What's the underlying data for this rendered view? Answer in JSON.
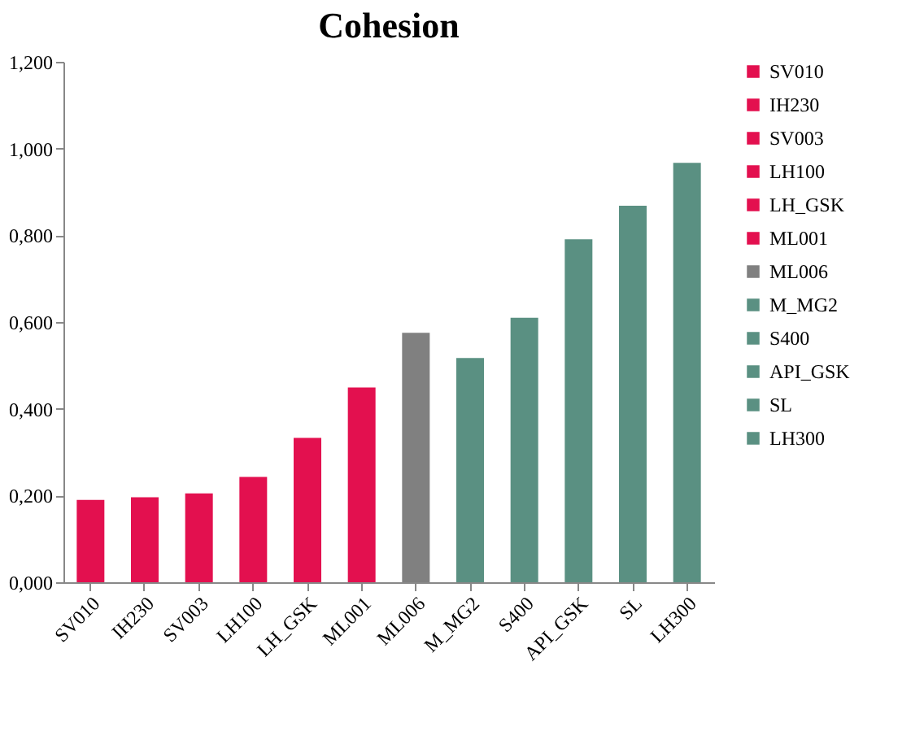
{
  "chart_data": {
    "type": "bar",
    "title": "Cohesion",
    "categories": [
      "SV010",
      "IH230",
      "SV003",
      "LH100",
      "LH_GSK",
      "ML001",
      "ML006",
      "M_MG2",
      "S400",
      "API_GSK",
      "SL",
      "LH300"
    ],
    "series": [
      {
        "name": "SV010",
        "color": "#e3104f",
        "values": [
          0.19,
          null,
          null,
          null,
          null,
          null,
          null,
          null,
          null,
          null,
          null,
          null
        ]
      },
      {
        "name": "IH230",
        "color": "#e3104f",
        "values": [
          null,
          0.196,
          null,
          null,
          null,
          null,
          null,
          null,
          null,
          null,
          null,
          null
        ]
      },
      {
        "name": "SV003",
        "color": "#e3104f",
        "values": [
          null,
          null,
          0.205,
          null,
          null,
          null,
          null,
          null,
          null,
          null,
          null,
          null
        ]
      },
      {
        "name": "LH100",
        "color": "#e3104f",
        "values": [
          null,
          null,
          null,
          0.243,
          null,
          null,
          null,
          null,
          null,
          null,
          null,
          null
        ]
      },
      {
        "name": "LH_GSK",
        "color": "#e3104f",
        "values": [
          null,
          null,
          null,
          null,
          0.333,
          null,
          null,
          null,
          null,
          null,
          null,
          null
        ]
      },
      {
        "name": "ML001",
        "color": "#e3104f",
        "values": [
          null,
          null,
          null,
          null,
          null,
          0.449,
          null,
          null,
          null,
          null,
          null,
          null
        ]
      },
      {
        "name": "ML006",
        "color": "#808080",
        "values": [
          null,
          null,
          null,
          null,
          null,
          null,
          0.575,
          null,
          null,
          null,
          null,
          null
        ]
      },
      {
        "name": "M_MG2",
        "color": "#5a9082",
        "values": [
          null,
          null,
          null,
          null,
          null,
          null,
          null,
          0.517,
          null,
          null,
          null,
          null
        ]
      },
      {
        "name": "S400",
        "color": "#5a9082",
        "values": [
          null,
          null,
          null,
          null,
          null,
          null,
          null,
          null,
          0.61,
          null,
          null,
          null
        ]
      },
      {
        "name": "API_GSK",
        "color": "#5a9082",
        "values": [
          null,
          null,
          null,
          null,
          null,
          null,
          null,
          null,
          null,
          0.791,
          null,
          null
        ]
      },
      {
        "name": "SL",
        "color": "#5a9082",
        "values": [
          null,
          null,
          null,
          null,
          null,
          null,
          null,
          null,
          null,
          null,
          0.868,
          null
        ]
      },
      {
        "name": "LH300",
        "color": "#5a9082",
        "values": [
          null,
          null,
          null,
          null,
          null,
          null,
          null,
          null,
          null,
          null,
          null,
          0.967
        ]
      }
    ],
    "ylim": [
      0,
      1.2
    ],
    "yticks": [
      {
        "value": 0,
        "label": "0,000"
      },
      {
        "value": 0.2,
        "label": "0,200"
      },
      {
        "value": 0.4,
        "label": "0,400"
      },
      {
        "value": 0.6,
        "label": "0,600"
      },
      {
        "value": 0.8,
        "label": "0,800"
      },
      {
        "value": 1.0,
        "label": "1,000"
      },
      {
        "value": 1.2,
        "label": "1,200"
      }
    ],
    "grid": false,
    "legend": "right"
  }
}
